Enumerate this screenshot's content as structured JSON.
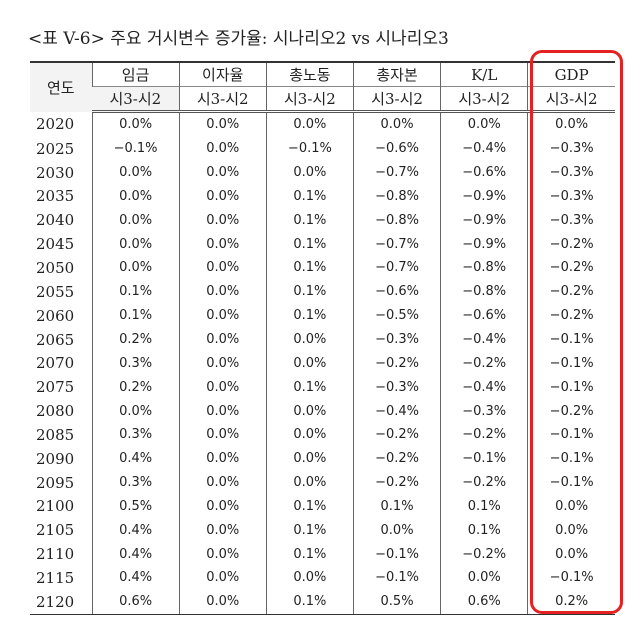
{
  "title": "<표 V-6> 주요 거시변수 증가율: 시나리오2 vs 시나리오3",
  "table": {
    "header": [
      "연도",
      "임금",
      "이자율",
      "총노동",
      "총자본",
      "K/L",
      "GDP"
    ],
    "subheader": [
      "시3-시2",
      "시3-시2",
      "시3-시2",
      "시3-시2",
      "시3-시2",
      "시3-시2"
    ],
    "rows": [
      [
        "2020",
        "0.0%",
        "0.0%",
        "0.0%",
        "0.0%",
        "0.0%",
        "0.0%"
      ],
      [
        "2025",
        "−0.1%",
        "0.0%",
        "−0.1%",
        "−0.6%",
        "−0.4%",
        "−0.3%"
      ],
      [
        "2030",
        "0.0%",
        "0.0%",
        "0.0%",
        "−0.7%",
        "−0.6%",
        "−0.3%"
      ],
      [
        "2035",
        "0.0%",
        "0.0%",
        "0.1%",
        "−0.8%",
        "−0.9%",
        "−0.3%"
      ],
      [
        "2040",
        "0.0%",
        "0.0%",
        "0.1%",
        "−0.8%",
        "−0.9%",
        "−0.3%"
      ],
      [
        "2045",
        "0.0%",
        "0.0%",
        "0.1%",
        "−0.7%",
        "−0.9%",
        "−0.2%"
      ],
      [
        "2050",
        "0.0%",
        "0.0%",
        "0.1%",
        "−0.7%",
        "−0.8%",
        "−0.2%"
      ],
      [
        "2055",
        "0.1%",
        "0.0%",
        "0.1%",
        "−0.6%",
        "−0.8%",
        "−0.2%"
      ],
      [
        "2060",
        "0.1%",
        "0.0%",
        "0.1%",
        "−0.5%",
        "−0.6%",
        "−0.2%"
      ],
      [
        "2065",
        "0.2%",
        "0.0%",
        "0.0%",
        "−0.3%",
        "−0.4%",
        "−0.1%"
      ],
      [
        "2070",
        "0.3%",
        "0.0%",
        "0.0%",
        "−0.2%",
        "−0.2%",
        "−0.1%"
      ],
      [
        "2075",
        "0.2%",
        "0.0%",
        "0.1%",
        "−0.3%",
        "−0.4%",
        "−0.1%"
      ],
      [
        "2080",
        "0.0%",
        "0.0%",
        "0.0%",
        "−0.4%",
        "−0.3%",
        "−0.2%"
      ],
      [
        "2085",
        "0.3%",
        "0.0%",
        "0.0%",
        "−0.2%",
        "−0.2%",
        "−0.1%"
      ],
      [
        "2090",
        "0.4%",
        "0.0%",
        "0.0%",
        "−0.2%",
        "−0.1%",
        "−0.1%"
      ],
      [
        "2095",
        "0.3%",
        "0.0%",
        "0.0%",
        "−0.2%",
        "−0.2%",
        "−0.1%"
      ],
      [
        "2100",
        "0.5%",
        "0.0%",
        "0.1%",
        "0.1%",
        "0.1%",
        "0.0%"
      ],
      [
        "2105",
        "0.4%",
        "0.0%",
        "0.1%",
        "0.0%",
        "0.1%",
        "0.0%"
      ],
      [
        "2110",
        "0.4%",
        "0.0%",
        "0.1%",
        "−0.1%",
        "−0.2%",
        "0.0%"
      ],
      [
        "2115",
        "0.4%",
        "0.0%",
        "0.0%",
        "−0.1%",
        "0.0%",
        "−0.1%"
      ],
      [
        "2120",
        "0.6%",
        "0.0%",
        "0.1%",
        "0.5%",
        "0.6%",
        "0.2%"
      ]
    ]
  }
}
